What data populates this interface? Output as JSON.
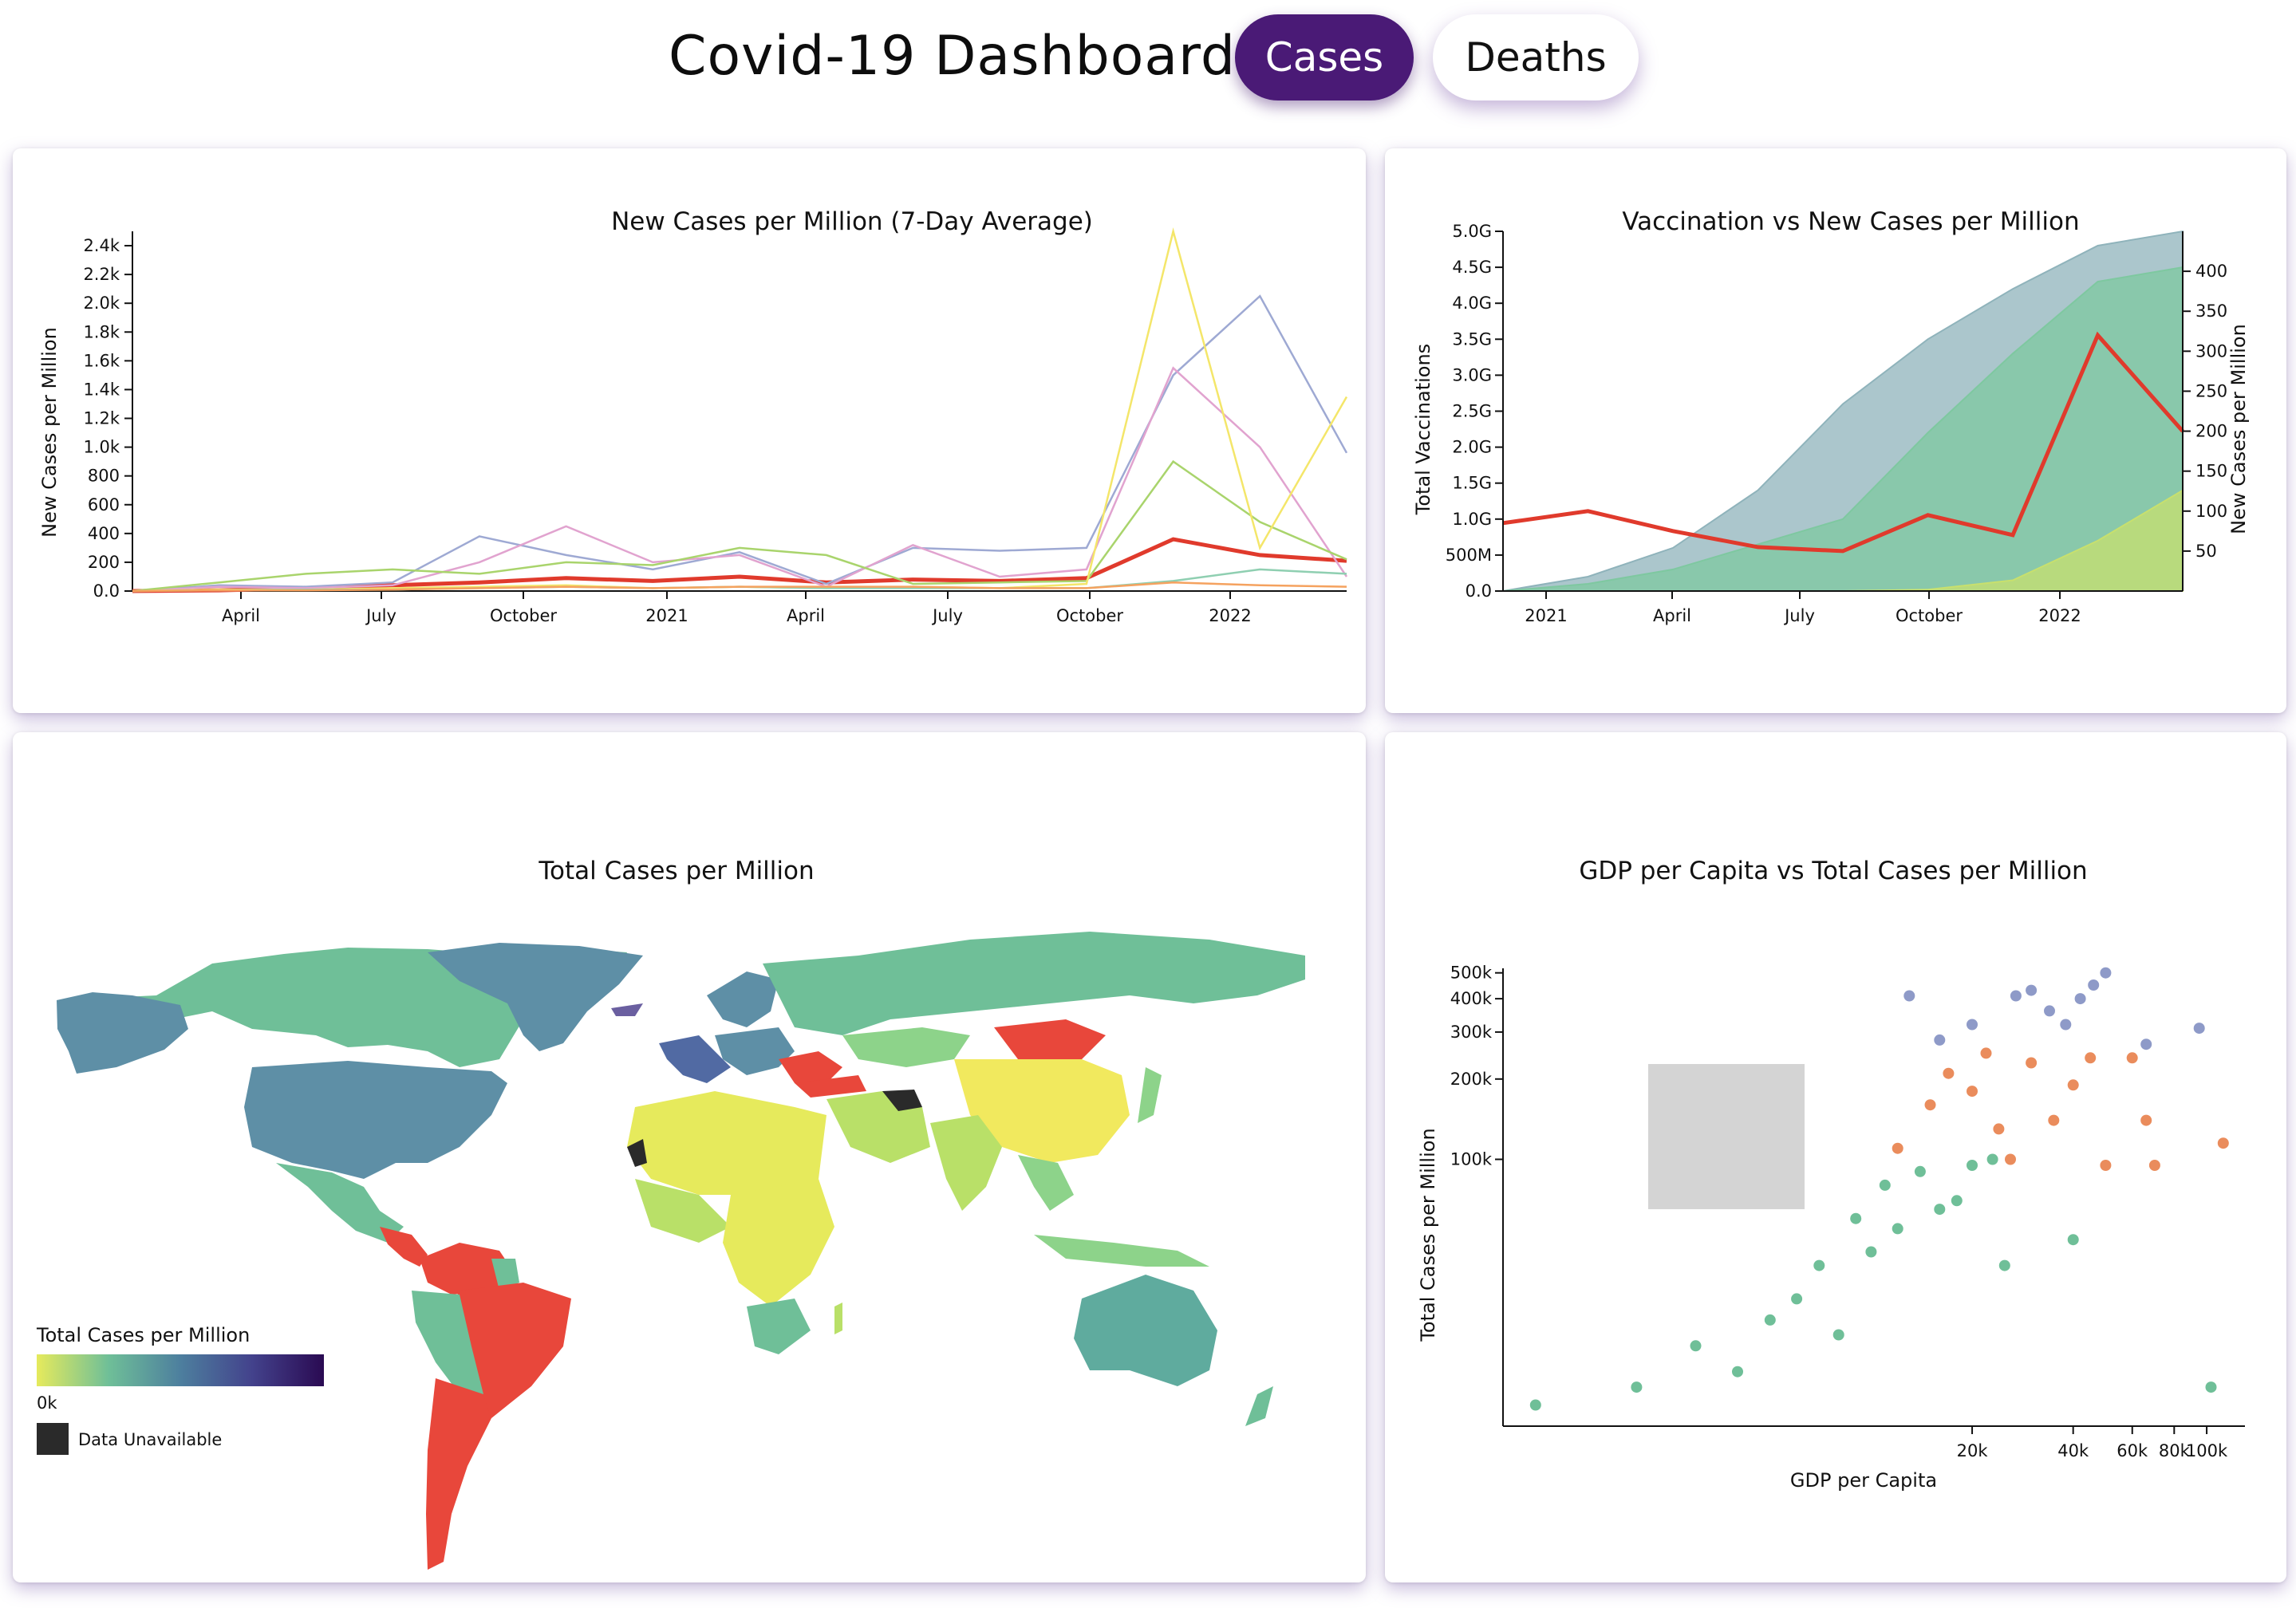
{
  "header": {
    "title": "Covid-19 Dashboard",
    "buttons": {
      "cases": "Cases",
      "deaths": "Deaths"
    },
    "active": "cases"
  },
  "colors": {
    "accent": "#4a1a76",
    "red_line": "#e03a2c",
    "map_red": "#e8473b",
    "unavailable": "#2a2a2a"
  },
  "charts": {
    "new_cases": {
      "title": "New Cases per Million (7-Day Average)",
      "ylabel": "New Cases per Million",
      "yticks": [
        "0.0",
        "200",
        "400",
        "600",
        "800",
        "1.0k",
        "1.2k",
        "1.4k",
        "1.6k",
        "1.8k",
        "2.0k",
        "2.2k",
        "2.4k"
      ],
      "xticks": [
        "April",
        "July",
        "October",
        "2021",
        "April",
        "July",
        "October",
        "2022"
      ]
    },
    "vaccination": {
      "title": "Vaccination vs New Cases per Million",
      "ylabel_left": "Total Vaccinations",
      "ylabel_right": "New Cases per Million",
      "yticks_left": [
        "0.0",
        "500M",
        "1.0G",
        "1.5G",
        "2.0G",
        "2.5G",
        "3.0G",
        "3.5G",
        "4.0G",
        "4.5G",
        "5.0G"
      ],
      "yticks_right": [
        "50",
        "100",
        "150",
        "200",
        "250",
        "300",
        "350",
        "400"
      ],
      "xticks": [
        "2021",
        "April",
        "July",
        "October",
        "2022"
      ]
    },
    "map": {
      "title": "Total Cases per Million",
      "legend_title": "Total Cases per Million",
      "legend_min": "0k",
      "unavailable_label": "Data Unavailable"
    },
    "scatter": {
      "title": "GDP per Capita vs Total Cases per Million",
      "xlabel": "GDP per Capita",
      "ylabel": "Total Cases per Million",
      "xticks": [
        "20k",
        "40k",
        "60k",
        "80k",
        "100k"
      ],
      "yticks": [
        "100k",
        "200k",
        "300k",
        "400k",
        "500k"
      ]
    }
  },
  "chart_data": [
    {
      "type": "line",
      "title": "New Cases per Million (7-Day Average)",
      "ylabel": "New Cases per Million",
      "ylim": [
        0,
        2500
      ],
      "x": [
        "2020-02",
        "2020-04",
        "2020-06",
        "2020-08",
        "2020-10",
        "2020-12",
        "2021-02",
        "2021-04",
        "2021-06",
        "2021-08",
        "2021-10",
        "2021-12",
        "2022-01",
        "2022-02",
        "2022-03"
      ],
      "series": [
        {
          "color": "#e03a2c",
          "values": [
            0,
            5,
            20,
            40,
            60,
            90,
            70,
            100,
            60,
            80,
            70,
            90,
            360,
            250,
            210
          ]
        },
        {
          "color": "#9ea9d3",
          "values": [
            0,
            40,
            30,
            60,
            380,
            250,
            150,
            270,
            50,
            300,
            280,
            300,
            1500,
            2050,
            960
          ]
        },
        {
          "color": "#e1a3cf",
          "values": [
            0,
            30,
            20,
            40,
            200,
            450,
            200,
            250,
            30,
            320,
            100,
            150,
            1550,
            1000,
            100
          ]
        },
        {
          "color": "#a9d46c",
          "values": [
            0,
            60,
            120,
            150,
            120,
            200,
            180,
            300,
            250,
            50,
            60,
            70,
            900,
            480,
            220
          ]
        },
        {
          "color": "#f4e66a",
          "values": [
            0,
            10,
            10,
            20,
            30,
            40,
            20,
            30,
            20,
            30,
            20,
            50,
            2500,
            300,
            1350
          ]
        },
        {
          "color": "#8fcfb1",
          "values": [
            0,
            5,
            10,
            10,
            20,
            30,
            20,
            30,
            20,
            20,
            20,
            20,
            70,
            150,
            120
          ]
        },
        {
          "color": "#f5a25f",
          "values": [
            0,
            5,
            5,
            10,
            20,
            30,
            20,
            30,
            30,
            30,
            20,
            20,
            60,
            40,
            30
          ]
        }
      ]
    },
    {
      "type": "area",
      "title": "Vaccination vs New Cases per Million",
      "ylabel": "Total Vaccinations",
      "ylim": [
        0,
        5000000000
      ],
      "x": [
        "2020-12",
        "2021-02",
        "2021-04",
        "2021-06",
        "2021-08",
        "2021-10",
        "2021-12",
        "2022-02",
        "2022-03"
      ],
      "series": [
        {
          "color": "#8fb3bb",
          "values": [
            0,
            200000000,
            600000000,
            1400000000,
            2600000000,
            3500000000,
            4200000000,
            4800000000,
            5000000000
          ]
        },
        {
          "color": "#7ec8a0",
          "values": [
            0,
            100000000,
            300000000,
            650000000,
            1000000000,
            2200000000,
            3300000000,
            4300000000,
            4500000000
          ]
        },
        {
          "color": "#c8e06d",
          "values": [
            0,
            0,
            0,
            0,
            0,
            20000000,
            150000000,
            700000000,
            1400000000
          ]
        },
        {
          "color": "#e03a2c",
          "axis": "right",
          "values": [
            85,
            100,
            75,
            55,
            50,
            95,
            70,
            320,
            200
          ]
        }
      ]
    },
    {
      "type": "scatter",
      "title": "GDP per Capita vs Total Cases per Million",
      "xlabel": "GDP per Capita",
      "ylabel": "Total Cases per Million",
      "series": [
        {
          "color": "#6fbf98",
          "points": [
            [
              1000,
              12000
            ],
            [
              2000,
              14000
            ],
            [
              3000,
              20000
            ],
            [
              4000,
              16000
            ],
            [
              5000,
              25000
            ],
            [
              6000,
              30000
            ],
            [
              7000,
              40000
            ],
            [
              8000,
              22000
            ],
            [
              9000,
              60000
            ],
            [
              10000,
              45000
            ],
            [
              11000,
              80000
            ],
            [
              12000,
              55000
            ],
            [
              14000,
              90000
            ],
            [
              16000,
              65000
            ],
            [
              18000,
              70000
            ],
            [
              20000,
              95000
            ],
            [
              23000,
              100000
            ],
            [
              25000,
              40000
            ],
            [
              40000,
              50000
            ],
            [
              103000,
              14000
            ]
          ]
        },
        {
          "color": "#ea8c5c",
          "points": [
            [
              12000,
              110000
            ],
            [
              15000,
              160000
            ],
            [
              17000,
              210000
            ],
            [
              20000,
              180000
            ],
            [
              22000,
              250000
            ],
            [
              24000,
              130000
            ],
            [
              26000,
              100000
            ],
            [
              30000,
              230000
            ],
            [
              35000,
              140000
            ],
            [
              40000,
              190000
            ],
            [
              45000,
              240000
            ],
            [
              50000,
              95000
            ],
            [
              60000,
              240000
            ],
            [
              66000,
              140000
            ],
            [
              70000,
              95000
            ],
            [
              112000,
              115000
            ]
          ]
        },
        {
          "color": "#8e9ac8",
          "points": [
            [
              13000,
              410000
            ],
            [
              16000,
              280000
            ],
            [
              20000,
              320000
            ],
            [
              27000,
              410000
            ],
            [
              30000,
              430000
            ],
            [
              34000,
              360000
            ],
            [
              38000,
              320000
            ],
            [
              42000,
              400000
            ],
            [
              46000,
              450000
            ],
            [
              50000,
              500000
            ],
            [
              66000,
              270000
            ],
            [
              95000,
              310000
            ]
          ]
        }
      ]
    }
  ]
}
